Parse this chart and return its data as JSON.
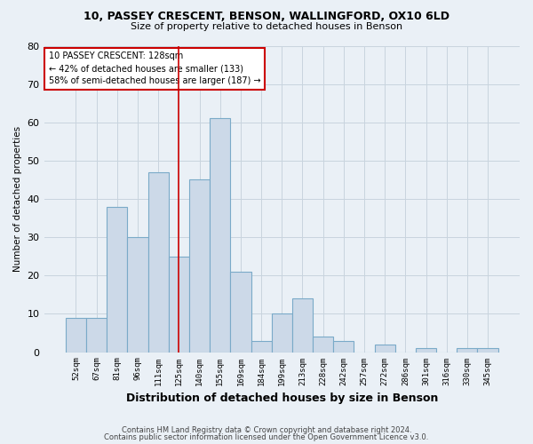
{
  "title1": "10, PASSEY CRESCENT, BENSON, WALLINGFORD, OX10 6LD",
  "title2": "Size of property relative to detached houses in Benson",
  "xlabel": "Distribution of detached houses by size in Benson",
  "ylabel": "Number of detached properties",
  "categories": [
    "52sqm",
    "67sqm",
    "81sqm",
    "96sqm",
    "111sqm",
    "125sqm",
    "140sqm",
    "155sqm",
    "169sqm",
    "184sqm",
    "199sqm",
    "213sqm",
    "228sqm",
    "242sqm",
    "257sqm",
    "272sqm",
    "286sqm",
    "301sqm",
    "316sqm",
    "330sqm",
    "345sqm"
  ],
  "values": [
    9,
    9,
    38,
    30,
    47,
    25,
    45,
    61,
    21,
    3,
    10,
    14,
    4,
    3,
    0,
    2,
    0,
    1,
    0,
    1,
    1
  ],
  "bar_color": "#ccd9e8",
  "bar_edge_color": "#7aaac8",
  "vline_x_idx": 5,
  "vline_color": "#cc0000",
  "annotation_line1": "10 PASSEY CRESCENT: 128sqm",
  "annotation_line2": "← 42% of detached houses are smaller (133)",
  "annotation_line3": "58% of semi-detached houses are larger (187) →",
  "annotation_box_color": "#ffffff",
  "annotation_box_edge": "#cc0000",
  "ylim": [
    0,
    80
  ],
  "yticks": [
    0,
    10,
    20,
    30,
    40,
    50,
    60,
    70,
    80
  ],
  "footer1": "Contains HM Land Registry data © Crown copyright and database right 2024.",
  "footer2": "Contains public sector information licensed under the Open Government Licence v3.0.",
  "bg_color": "#eaf0f6",
  "plot_bg_color": "#eaf0f6",
  "grid_color": "#c8d4de"
}
